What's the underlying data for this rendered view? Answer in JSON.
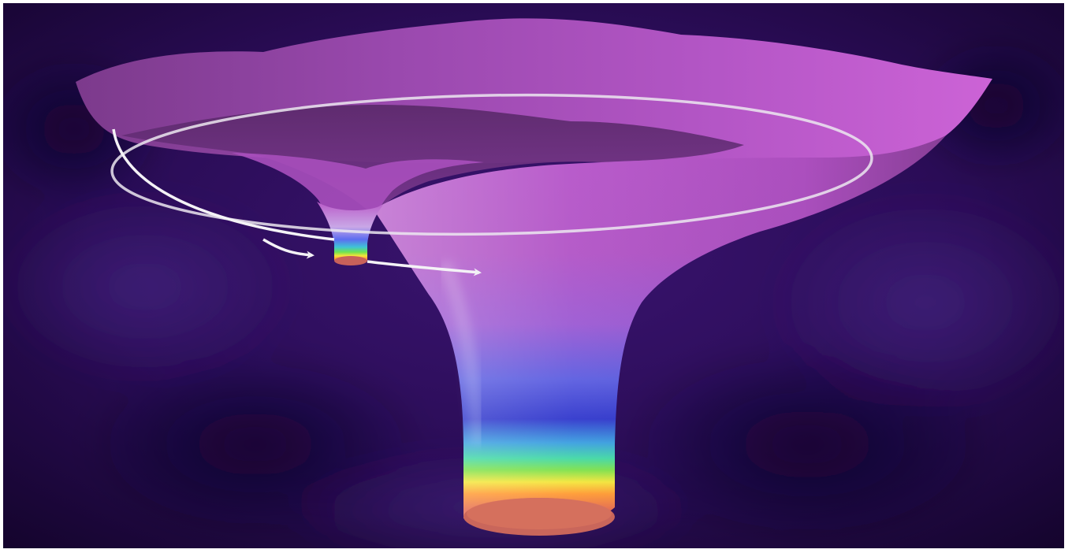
{
  "image": {
    "subject": "warped-spacetime-funnel-with-orbit",
    "colors": {
      "space_dark": "#1a0638",
      "space_mid": "#2c0d57",
      "surface_light": "#c660d0",
      "surface_mid": "#9b43b4",
      "surface_dark": "#5d2b6b",
      "orbit_line": "#e9e6ee"
    },
    "rainbow_stops": [
      "#e0d6ff",
      "#5f7dff",
      "#2d2fd4",
      "#39c7d9",
      "#44d44a",
      "#ffe834",
      "#ff7b2d",
      "#d65c55"
    ],
    "icons": [
      "orbit-arrow-icon",
      "orbit-arrow-icon"
    ]
  }
}
